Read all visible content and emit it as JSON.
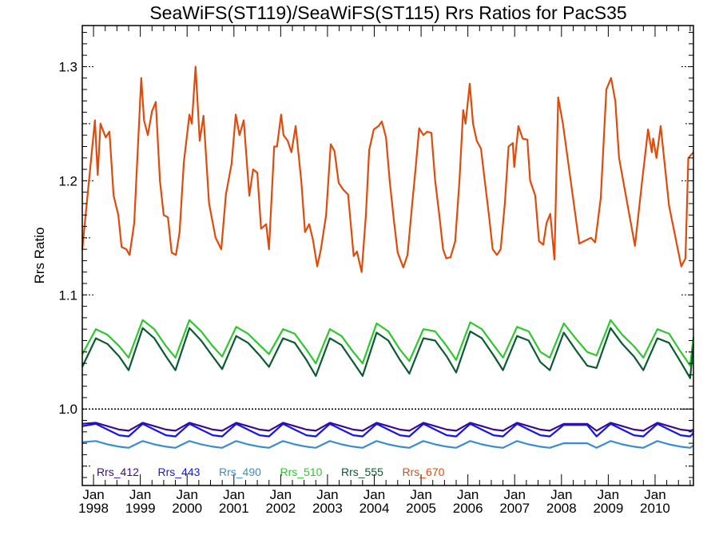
{
  "chart_data": {
    "type": "line",
    "title": "SeaWiFS(ST119)/SeaWiFS(ST115)  Rrs Ratios for PacS35",
    "xlabel": "",
    "ylabel": "Rrs Ratio",
    "xlim": [
      1997.76,
      2010.82
    ],
    "ylim": [
      0.933,
      1.336
    ],
    "y_ticks": [
      1.0,
      1.1,
      1.2,
      1.3
    ],
    "y_tick_labels": [
      "1.0",
      "1.1",
      "1.2",
      "1.3"
    ],
    "x_ticks": [
      1998,
      1999,
      2000,
      2001,
      2002,
      2003,
      2004,
      2005,
      2006,
      2007,
      2008,
      2009,
      2010
    ],
    "x_tick_month": "Jan",
    "x_tick_labels": [
      "1998",
      "1999",
      "2000",
      "2001",
      "2002",
      "2003",
      "2004",
      "2005",
      "2006",
      "2007",
      "2008",
      "2009",
      "2010"
    ],
    "reference_line": 1.0,
    "legend_placement": "bottom-inside",
    "shared_x": [
      1997.76,
      1998.05,
      1998.3,
      1998.55,
      1998.75,
      1999.05,
      1999.3,
      1999.55,
      1999.75,
      2000.05,
      2000.3,
      2000.55,
      2000.75,
      2001.05,
      2001.3,
      2001.55,
      2001.75,
      2002.05,
      2002.3,
      2002.55,
      2002.75,
      2003.05,
      2003.3,
      2003.55,
      2003.75,
      2004.05,
      2004.3,
      2004.55,
      2004.75,
      2005.05,
      2005.3,
      2005.55,
      2005.75,
      2006.05,
      2006.3,
      2006.55,
      2006.75,
      2007.05,
      2007.3,
      2007.55,
      2007.75,
      2008.05,
      2008.3,
      2008.55,
      2008.75,
      2009.05,
      2009.3,
      2009.55,
      2009.75,
      2010.05,
      2010.3,
      2010.55,
      2010.75,
      2010.82
    ],
    "series": [
      {
        "name": "Rrs_412",
        "color": "#3c0a8c",
        "values": [
          0.987,
          0.988,
          0.985,
          0.982,
          0.981,
          0.988,
          0.985,
          0.982,
          0.981,
          0.988,
          0.985,
          0.982,
          0.981,
          0.988,
          0.985,
          0.982,
          0.981,
          0.988,
          0.985,
          0.982,
          0.981,
          0.988,
          0.985,
          0.982,
          0.981,
          0.988,
          0.985,
          0.982,
          0.981,
          0.988,
          0.985,
          0.982,
          0.981,
          0.988,
          0.985,
          0.982,
          0.981,
          0.988,
          0.985,
          0.982,
          0.981,
          0.987,
          0.987,
          0.987,
          0.981,
          0.988,
          0.985,
          0.982,
          0.981,
          0.988,
          0.985,
          0.982,
          0.981,
          0.982
        ]
      },
      {
        "name": "Rrs_443",
        "color": "#1414f0",
        "values": [
          0.985,
          0.987,
          0.982,
          0.977,
          0.976,
          0.987,
          0.982,
          0.977,
          0.976,
          0.987,
          0.982,
          0.977,
          0.976,
          0.987,
          0.982,
          0.977,
          0.976,
          0.987,
          0.982,
          0.977,
          0.976,
          0.987,
          0.982,
          0.977,
          0.976,
          0.987,
          0.982,
          0.977,
          0.976,
          0.987,
          0.982,
          0.977,
          0.976,
          0.987,
          0.982,
          0.977,
          0.976,
          0.987,
          0.982,
          0.977,
          0.976,
          0.986,
          0.986,
          0.986,
          0.976,
          0.987,
          0.982,
          0.977,
          0.976,
          0.987,
          0.982,
          0.977,
          0.976,
          0.979
        ]
      },
      {
        "name": "Rrs_490",
        "color": "#3a8cd0",
        "values": [
          0.971,
          0.972,
          0.969,
          0.967,
          0.966,
          0.972,
          0.969,
          0.967,
          0.966,
          0.972,
          0.969,
          0.967,
          0.966,
          0.972,
          0.969,
          0.967,
          0.966,
          0.972,
          0.969,
          0.967,
          0.966,
          0.972,
          0.969,
          0.967,
          0.966,
          0.972,
          0.969,
          0.967,
          0.966,
          0.972,
          0.969,
          0.967,
          0.966,
          0.972,
          0.969,
          0.967,
          0.966,
          0.972,
          0.969,
          0.967,
          0.966,
          0.97,
          0.97,
          0.97,
          0.966,
          0.972,
          0.969,
          0.967,
          0.966,
          0.972,
          0.969,
          0.967,
          0.966,
          0.968
        ]
      },
      {
        "name": "Rrs_510",
        "color": "#2cc82c",
        "values": [
          1.048,
          1.07,
          1.065,
          1.055,
          1.045,
          1.078,
          1.07,
          1.055,
          1.045,
          1.078,
          1.068,
          1.055,
          1.046,
          1.072,
          1.066,
          1.056,
          1.048,
          1.07,
          1.066,
          1.052,
          1.04,
          1.07,
          1.064,
          1.05,
          1.04,
          1.075,
          1.068,
          1.052,
          1.042,
          1.07,
          1.068,
          1.055,
          1.043,
          1.076,
          1.07,
          1.056,
          1.045,
          1.072,
          1.068,
          1.05,
          1.045,
          1.075,
          1.062,
          1.05,
          1.047,
          1.078,
          1.065,
          1.055,
          1.045,
          1.07,
          1.066,
          1.05,
          1.038,
          1.063
        ]
      },
      {
        "name": "Rrs_555",
        "color": "#0a5a32",
        "values": [
          1.037,
          1.062,
          1.057,
          1.046,
          1.034,
          1.071,
          1.062,
          1.046,
          1.034,
          1.071,
          1.06,
          1.046,
          1.035,
          1.064,
          1.058,
          1.047,
          1.037,
          1.062,
          1.058,
          1.043,
          1.029,
          1.062,
          1.056,
          1.041,
          1.029,
          1.067,
          1.06,
          1.043,
          1.031,
          1.062,
          1.06,
          1.046,
          1.032,
          1.068,
          1.062,
          1.047,
          1.034,
          1.064,
          1.06,
          1.041,
          1.034,
          1.067,
          1.052,
          1.038,
          1.036,
          1.071,
          1.057,
          1.046,
          1.034,
          1.062,
          1.058,
          1.041,
          1.027,
          1.057
        ]
      },
      {
        "name": "Rrs_670",
        "color": "#e04a0a",
        "x": [
          1997.76,
          1998.03,
          1998.09,
          1998.15,
          1998.26,
          1998.34,
          1998.43,
          1998.53,
          1998.6,
          1998.7,
          1998.77,
          1998.87,
          1999.02,
          1999.08,
          1999.16,
          1999.25,
          1999.33,
          1999.42,
          1999.5,
          1999.59,
          1999.67,
          1999.76,
          1999.84,
          1999.93,
          2000.05,
          2000.1,
          2000.18,
          2000.27,
          2000.35,
          2000.47,
          2000.61,
          2000.73,
          2000.83,
          2000.95,
          2001.04,
          2001.12,
          2001.21,
          2001.33,
          2001.41,
          2001.5,
          2001.58,
          2001.69,
          2001.75,
          2001.86,
          2001.92,
          2002.01,
          2002.06,
          2002.15,
          2002.23,
          2002.32,
          2002.44,
          2002.52,
          2002.61,
          2002.69,
          2002.78,
          2002.86,
          2002.97,
          2003.07,
          2003.15,
          2003.24,
          2003.34,
          2003.44,
          2003.56,
          2003.63,
          2003.73,
          2003.82,
          2003.89,
          2003.99,
          2004.09,
          2004.16,
          2004.25,
          2004.33,
          2004.42,
          2004.5,
          2004.62,
          2004.71,
          2004.81,
          2004.88,
          2004.96,
          2005.05,
          2005.13,
          2005.22,
          2005.3,
          2005.39,
          2005.47,
          2005.54,
          2005.63,
          2005.73,
          2005.82,
          2005.9,
          2005.95,
          2006.04,
          2006.11,
          2006.19,
          2006.28,
          2006.36,
          2006.45,
          2006.53,
          2006.62,
          2006.7,
          2006.79,
          2006.87,
          2006.96,
          2006.99,
          2007.08,
          2007.17,
          2007.27,
          2007.33,
          2007.44,
          2007.52,
          2007.61,
          2007.68,
          2007.76,
          2007.85,
          2007.93,
          2008.03,
          2008.38,
          2008.63,
          2008.72,
          2008.84,
          2008.96,
          2009.06,
          2009.15,
          2009.23,
          2009.57,
          2009.71,
          2009.85,
          2009.93,
          2009.96,
          2010.03,
          2010.12,
          2010.3,
          2010.56,
          2010.65,
          2010.71,
          2010.82
        ],
        "values": [
          1.14,
          1.253,
          1.205,
          1.25,
          1.238,
          1.243,
          1.187,
          1.17,
          1.142,
          1.14,
          1.135,
          1.163,
          1.29,
          1.253,
          1.24,
          1.261,
          1.269,
          1.2,
          1.17,
          1.168,
          1.137,
          1.135,
          1.155,
          1.216,
          1.258,
          1.25,
          1.3,
          1.235,
          1.257,
          1.18,
          1.15,
          1.14,
          1.188,
          1.215,
          1.258,
          1.24,
          1.253,
          1.187,
          1.21,
          1.207,
          1.158,
          1.162,
          1.14,
          1.23,
          1.23,
          1.258,
          1.24,
          1.235,
          1.225,
          1.248,
          1.2,
          1.155,
          1.162,
          1.148,
          1.125,
          1.14,
          1.17,
          1.232,
          1.226,
          1.198,
          1.192,
          1.188,
          1.134,
          1.138,
          1.12,
          1.17,
          1.227,
          1.245,
          1.248,
          1.252,
          1.238,
          1.2,
          1.165,
          1.137,
          1.124,
          1.135,
          1.18,
          1.21,
          1.246,
          1.24,
          1.243,
          1.242,
          1.2,
          1.17,
          1.14,
          1.132,
          1.133,
          1.147,
          1.2,
          1.262,
          1.25,
          1.285,
          1.25,
          1.235,
          1.228,
          1.2,
          1.17,
          1.14,
          1.135,
          1.14,
          1.18,
          1.23,
          1.233,
          1.212,
          1.248,
          1.237,
          1.236,
          1.2,
          1.187,
          1.147,
          1.144,
          1.163,
          1.171,
          1.131,
          1.273,
          1.25,
          1.145,
          1.15,
          1.146,
          1.185,
          1.28,
          1.29,
          1.27,
          1.22,
          1.143,
          1.195,
          1.245,
          1.225,
          1.237,
          1.22,
          1.248,
          1.178,
          1.125,
          1.132,
          1.22,
          1.225
        ]
      }
    ]
  }
}
